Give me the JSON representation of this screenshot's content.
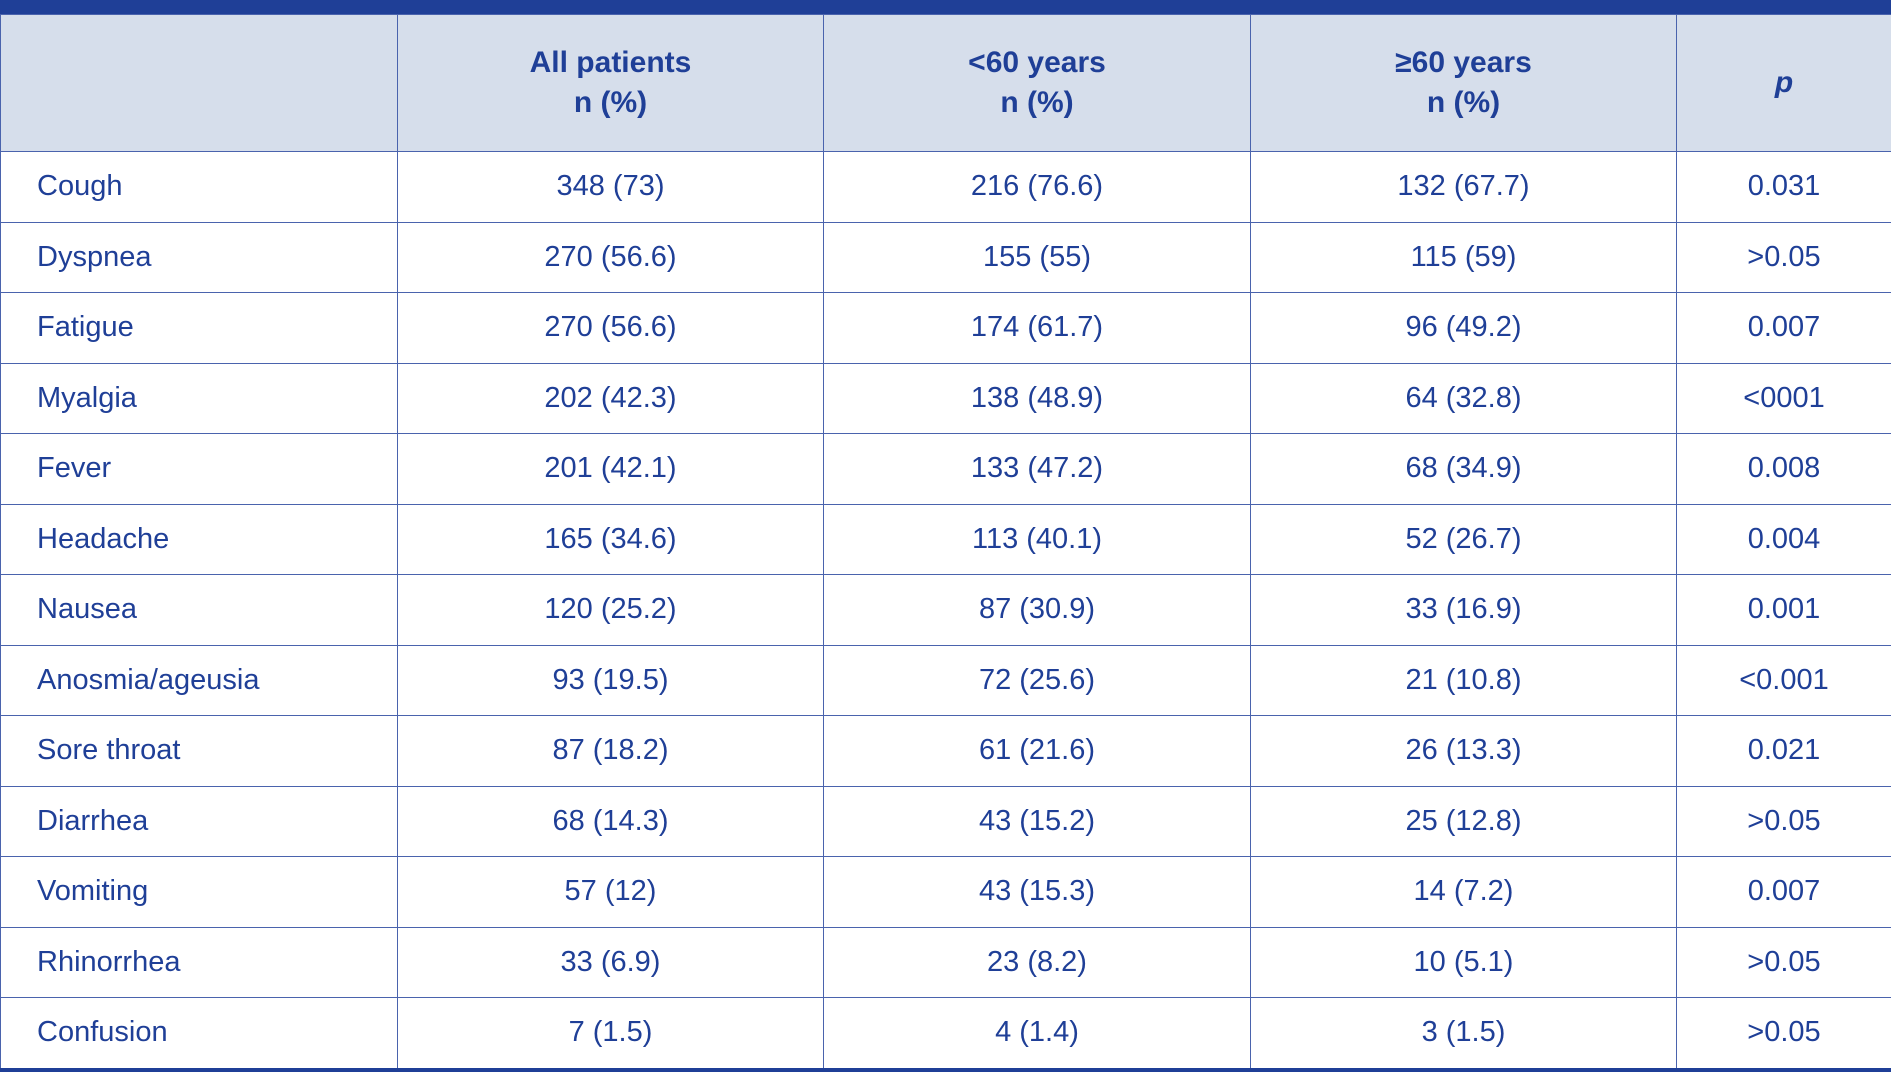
{
  "table": {
    "header": {
      "col0": "",
      "col1_line1": "All patients",
      "col1_line2": "n (%)",
      "col2_line1": "<60 years",
      "col2_line2": "n (%)",
      "col3_line1": "≥60 years",
      "col3_line2": "n (%)",
      "col4": "p"
    },
    "rows": [
      {
        "symptom": "Cough",
        "all": "348 (73)",
        "under60": "216 (76.6)",
        "over60": "132 (67.7)",
        "p": "0.031"
      },
      {
        "symptom": "Dyspnea",
        "all": "270 (56.6)",
        "under60": "155 (55)",
        "over60": "115 (59)",
        "p": ">0.05"
      },
      {
        "symptom": "Fatigue",
        "all": "270 (56.6)",
        "under60": "174 (61.7)",
        "over60": "96 (49.2)",
        "p": "0.007"
      },
      {
        "symptom": "Myalgia",
        "all": "202 (42.3)",
        "under60": "138 (48.9)",
        "over60": "64 (32.8)",
        "p": "<0001"
      },
      {
        "symptom": "Fever",
        "all": "201 (42.1)",
        "under60": "133 (47.2)",
        "over60": "68 (34.9)",
        "p": "0.008"
      },
      {
        "symptom": "Headache",
        "all": "165 (34.6)",
        "under60": "113 (40.1)",
        "over60": "52 (26.7)",
        "p": "0.004"
      },
      {
        "symptom": "Nausea",
        "all": "120 (25.2)",
        "under60": "87 (30.9)",
        "over60": "33 (16.9)",
        "p": "0.001"
      },
      {
        "symptom": "Anosmia/ageusia",
        "all": "93 (19.5)",
        "under60": "72 (25.6)",
        "over60": "21 (10.8)",
        "p": "<0.001"
      },
      {
        "symptom": "Sore throat",
        "all": "87 (18.2)",
        "under60": "61 (21.6)",
        "over60": "26 (13.3)",
        "p": "0.021"
      },
      {
        "symptom": "Diarrhea",
        "all": "68 (14.3)",
        "under60": "43 (15.2)",
        "over60": "25 (12.8)",
        "p": ">0.05"
      },
      {
        "symptom": "Vomiting",
        "all": "57 (12)",
        "under60": "43 (15.3)",
        "over60": "14 (7.2)",
        "p": "0.007"
      },
      {
        "symptom": "Rhinorrhea",
        "all": "33 (6.9)",
        "under60": "23 (8.2)",
        "over60": "10 (5.1)",
        "p": ">0.05"
      },
      {
        "symptom": "Confusion",
        "all": "7 (1.5)",
        "under60": "4 (1.4)",
        "over60": "3 (1.5)",
        "p": ">0.05"
      }
    ]
  },
  "colors": {
    "text": "#1f3f97",
    "header_bg": "#d6deeb",
    "border": "#4a63ad",
    "top_bar": "#1f3f97"
  }
}
